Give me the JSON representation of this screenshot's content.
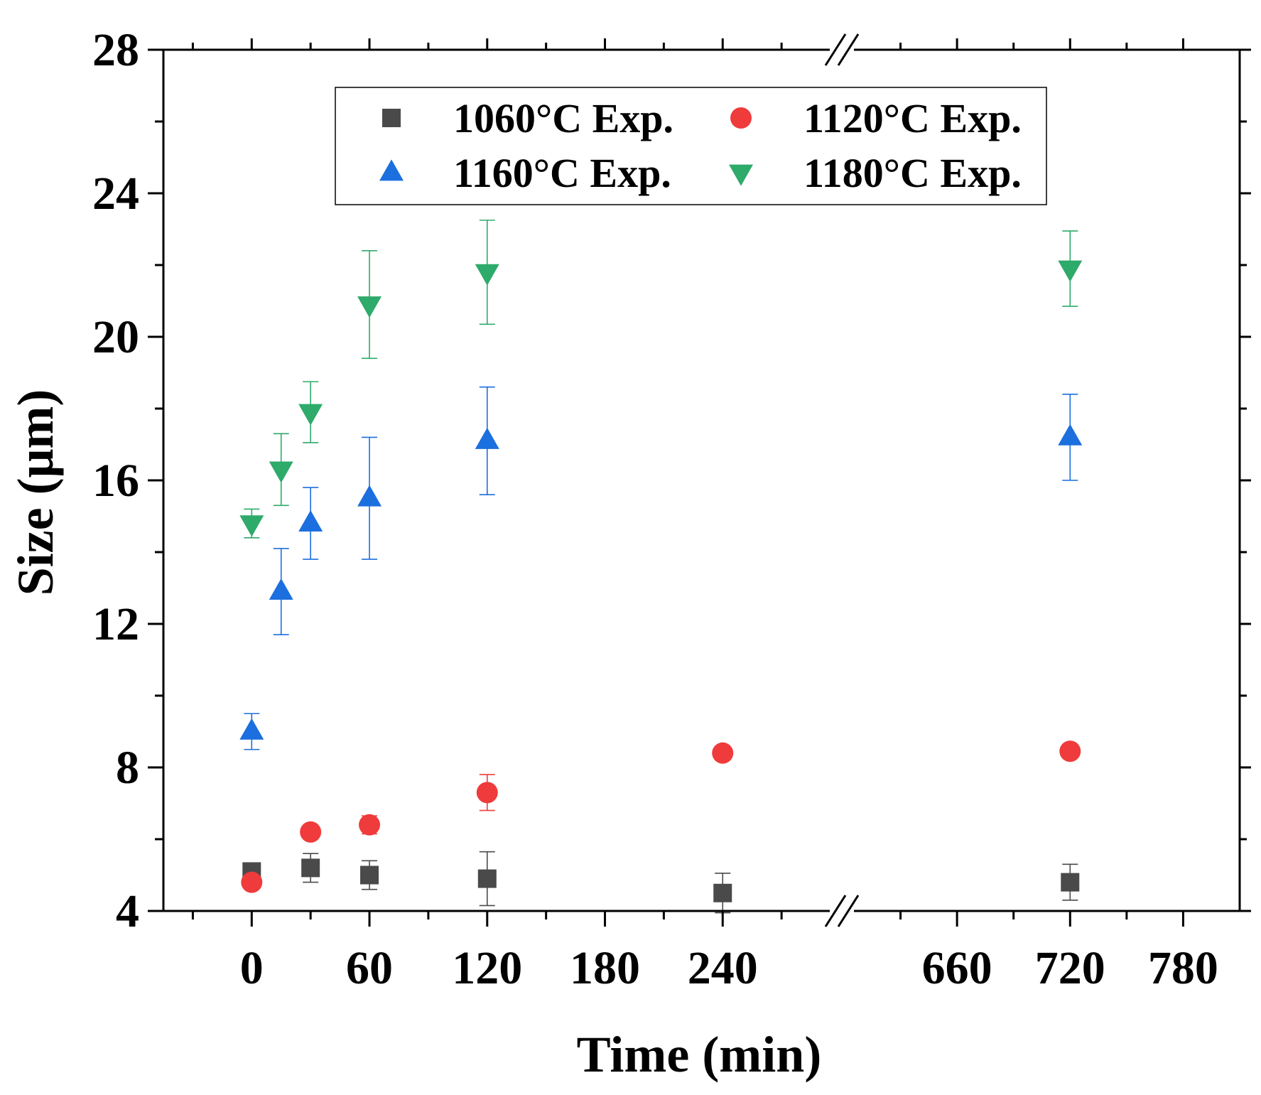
{
  "chart_data": {
    "type": "scatter",
    "xlabel": "Time (min)",
    "ylabel": "Size (μm)",
    "ylim": [
      4,
      28
    ],
    "y_ticks": [
      "4",
      "8",
      "12",
      "16",
      "20",
      "24",
      "28"
    ],
    "x_axis_break": {
      "before": 300,
      "after": 600
    },
    "x_tick_labels": [
      "0",
      "60",
      "120",
      "180",
      "240",
      "660",
      "720",
      "780"
    ],
    "legend_position": "top-center",
    "series": [
      {
        "name": "1060°C Exp.",
        "marker": "square",
        "color": "#4a4a4a",
        "points": [
          {
            "x": 0,
            "y": 5.1,
            "err": 0.1
          },
          {
            "x": 30,
            "y": 5.2,
            "err": 0.4
          },
          {
            "x": 60,
            "y": 5.0,
            "err": 0.4
          },
          {
            "x": 120,
            "y": 4.9,
            "err": 0.75
          },
          {
            "x": 240,
            "y": 4.5,
            "err": 0.55
          },
          {
            "x": 720,
            "y": 4.8,
            "err": 0.5
          }
        ]
      },
      {
        "name": "1120°C Exp.",
        "marker": "circle",
        "color": "#ef3b3b",
        "points": [
          {
            "x": 0,
            "y": 4.8,
            "err": 0.1
          },
          {
            "x": 30,
            "y": 6.2,
            "err": 0.1
          },
          {
            "x": 60,
            "y": 6.4,
            "err": 0.25
          },
          {
            "x": 120,
            "y": 7.3,
            "err": 0.5
          },
          {
            "x": 240,
            "y": 8.4,
            "err": 0.1
          },
          {
            "x": 720,
            "y": 8.45,
            "err": 0.1
          }
        ]
      },
      {
        "name": "1160°C Exp.",
        "marker": "triangle-up",
        "color": "#1c6fde",
        "points": [
          {
            "x": 0,
            "y": 9.0,
            "err": 0.5
          },
          {
            "x": 15,
            "y": 12.9,
            "err": 1.2
          },
          {
            "x": 30,
            "y": 14.8,
            "err": 1.0
          },
          {
            "x": 60,
            "y": 15.5,
            "err": 1.7
          },
          {
            "x": 120,
            "y": 17.1,
            "err": 1.5
          },
          {
            "x": 720,
            "y": 17.2,
            "err": 1.2
          }
        ]
      },
      {
        "name": "1180°C Exp.",
        "marker": "triangle-down",
        "color": "#2eaa6a",
        "points": [
          {
            "x": 0,
            "y": 14.8,
            "err": 0.4
          },
          {
            "x": 15,
            "y": 16.3,
            "err": 1.0
          },
          {
            "x": 30,
            "y": 17.9,
            "err": 0.85
          },
          {
            "x": 60,
            "y": 20.9,
            "err": 1.5
          },
          {
            "x": 120,
            "y": 21.8,
            "err": 1.45
          },
          {
            "x": 720,
            "y": 21.9,
            "err": 1.05
          }
        ]
      }
    ]
  }
}
